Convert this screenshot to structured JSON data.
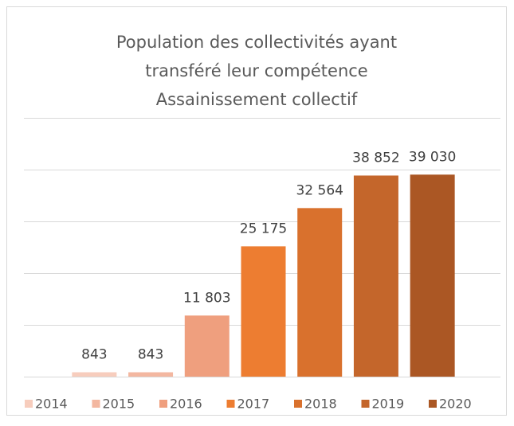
{
  "chart_data": {
    "type": "bar",
    "title": [
      "Population des collectivités ayant",
      "transféré leur compétence",
      "Assainissement collectif"
    ],
    "categories": [
      "2014",
      "2015",
      "2016",
      "2017",
      "2018",
      "2019",
      "2020"
    ],
    "values": [
      843,
      843,
      11803,
      25175,
      32564,
      38852,
      39030
    ],
    "value_labels": [
      "843",
      "843",
      "11 803",
      "25 175",
      "32 564",
      "38 852",
      "39 030"
    ],
    "colors": [
      "#f7cdbd",
      "#f3b7a0",
      "#ef9f7e",
      "#ed7d31",
      "#d9712d",
      "#c4662b",
      "#ab5724"
    ],
    "ylim": [
      0,
      50000
    ],
    "yticks": [
      0,
      10000,
      20000,
      30000,
      40000,
      50000
    ],
    "grid": true,
    "legend": "bottom"
  }
}
